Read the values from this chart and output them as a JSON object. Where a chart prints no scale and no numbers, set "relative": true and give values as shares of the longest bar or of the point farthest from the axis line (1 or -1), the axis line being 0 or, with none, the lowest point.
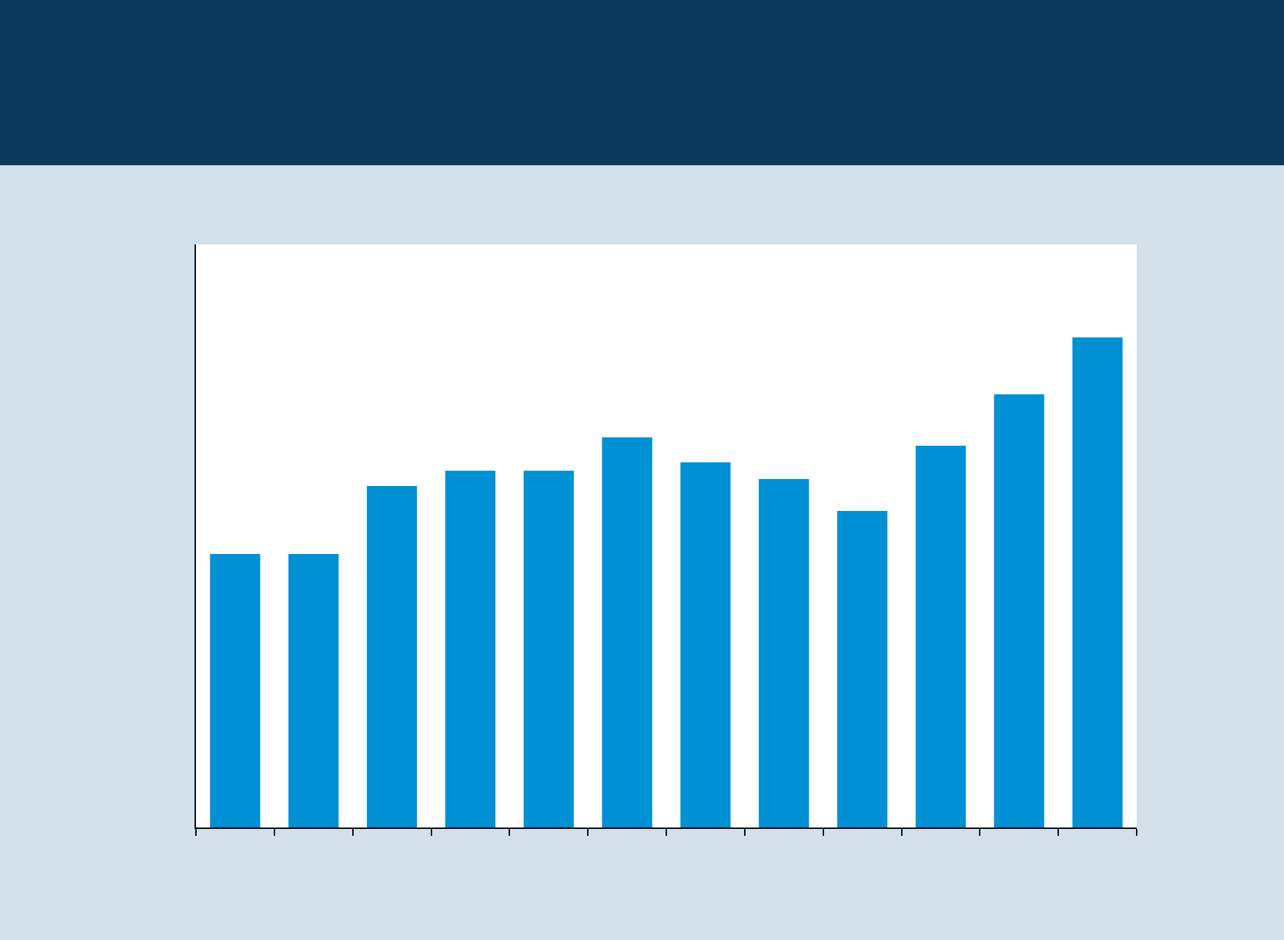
{
  "chart_data": {
    "type": "bar",
    "relative": true,
    "categories": [
      null,
      null,
      null,
      null,
      null,
      null,
      null,
      null,
      null,
      null,
      null,
      null
    ],
    "values": [
      0.558,
      0.558,
      0.697,
      0.728,
      0.728,
      0.796,
      0.745,
      0.711,
      0.646,
      0.779,
      0.884,
      1
    ],
    "color": "#0090d4"
  }
}
